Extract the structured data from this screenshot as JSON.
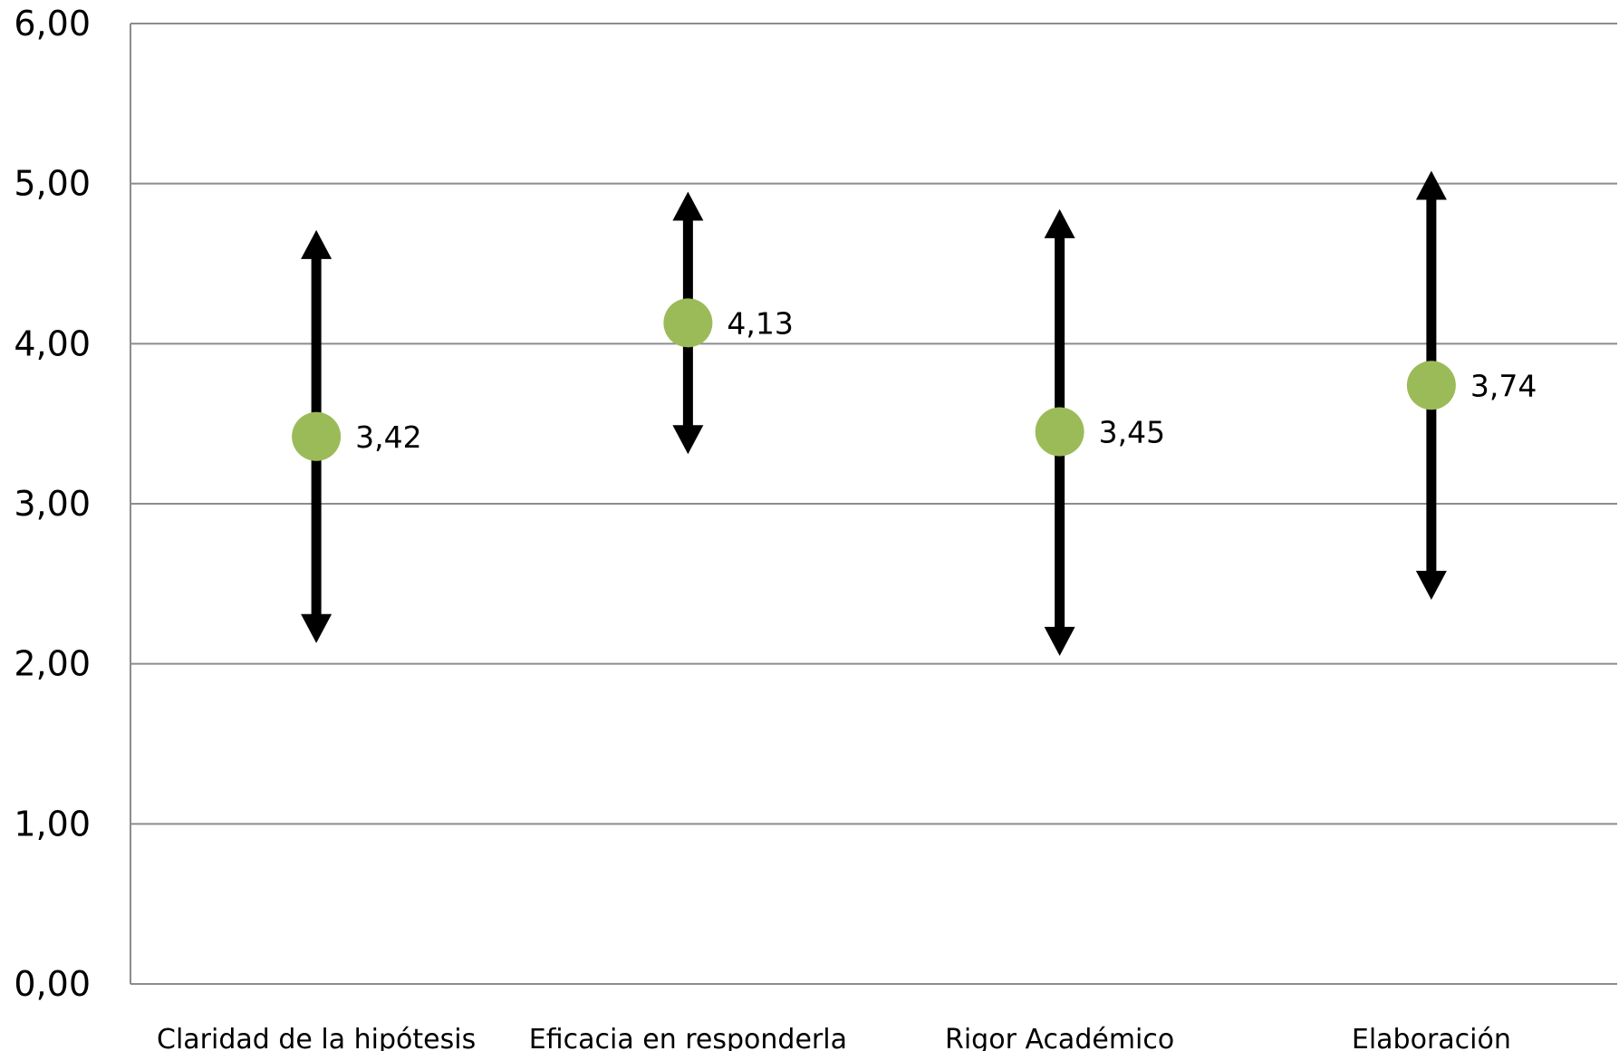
{
  "chart_data": {
    "type": "scatter",
    "categories": [
      "Claridad de la hipótesis",
      "Eficacia en responderla",
      "Rigor Académico",
      "Elaboración"
    ],
    "series": [
      {
        "values": [
          3.42,
          4.13,
          3.45,
          3.74
        ]
      }
    ],
    "data_labels": [
      "3,42",
      "4,13",
      "3,45",
      "3,74"
    ],
    "error_bars": [
      {
        "low": 2.13,
        "high": 4.71
      },
      {
        "low": 3.31,
        "high": 4.95
      },
      {
        "low": 2.05,
        "high": 4.84
      },
      {
        "low": 2.4,
        "high": 5.08
      }
    ],
    "ylim": [
      0,
      6
    ],
    "y_ticks": [
      0,
      1,
      2,
      3,
      4,
      5,
      6
    ],
    "y_tick_labels": [
      "0,00",
      "1,00",
      "2,00",
      "3,00",
      "4,00",
      "5,00",
      "6,00"
    ],
    "grid": true,
    "legend": "none",
    "colors": {
      "marker": "#9bbb59",
      "errorbar": "#000000",
      "gridline": "#8c8c8c",
      "axis": "#8c8c8c"
    }
  }
}
